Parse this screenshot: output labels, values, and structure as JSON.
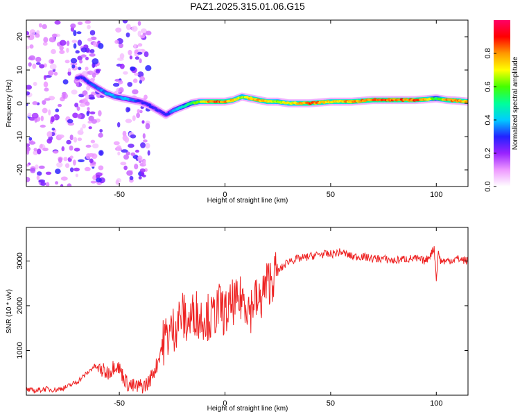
{
  "title": "PAZ1.2025.315.01.06.G15",
  "colors": {
    "snr_line": "#ee2222",
    "frame": "#000000",
    "colormap": [
      "#ffffff",
      "#ee99ff",
      "#9922ff",
      "#2222ff",
      "#00ccff",
      "#00ff99",
      "#44ff00",
      "#ffff00",
      "#ff9900",
      "#ff0000",
      "#ff0066"
    ]
  },
  "chart_data": [
    {
      "type": "heatmap",
      "name": "spectrogram",
      "xlabel": "Height of straight line (km)",
      "ylabel": "Frequency (Hz)",
      "xlim": [
        -94,
        115
      ],
      "ylim": [
        -25,
        25
      ],
      "x_ticks": [
        -50,
        0,
        50,
        100
      ],
      "x_tick_labels": [
        "-50",
        "0",
        "50",
        "100"
      ],
      "y_ticks": [
        -20,
        -10,
        0,
        10,
        20
      ],
      "y_tick_labels": [
        "-20",
        "-10",
        "0",
        "10",
        "20"
      ],
      "ridge": {
        "x": [
          -72,
          -68,
          -64,
          -60,
          -56,
          -52,
          -48,
          -44,
          -40,
          -36,
          -32,
          -28,
          -24,
          -20,
          -16,
          -12,
          -8,
          -4,
          0,
          4,
          8,
          12,
          16,
          20,
          25,
          30,
          40,
          50,
          60,
          70,
          80,
          90,
          95,
          100,
          105,
          110,
          115
        ],
        "y": [
          7,
          8,
          6,
          4.5,
          3,
          2,
          1.5,
          1,
          0.5,
          -0.5,
          -2,
          -3.5,
          -2,
          -1,
          0,
          0.5,
          0.5,
          0.5,
          0.5,
          1,
          2,
          1.5,
          1,
          0.5,
          0.5,
          0,
          0,
          0.5,
          0.5,
          1,
          1,
          1,
          1.2,
          1.5,
          1,
          0.8,
          0.5
        ],
        "amplitude": [
          0.3,
          0.3,
          0.35,
          0.35,
          0.4,
          0.4,
          0.4,
          0.4,
          0.3,
          0.3,
          0.3,
          0.3,
          0.4,
          0.5,
          0.6,
          0.7,
          0.85,
          0.9,
          0.85,
          0.8,
          0.7,
          0.8,
          0.85,
          0.8,
          0.7,
          0.75,
          0.9,
          0.8,
          0.85,
          0.9,
          0.9,
          0.9,
          0.85,
          0.55,
          0.85,
          0.9,
          0.8
        ]
      },
      "noise_regions": [
        {
          "x_range": [
            -94,
            -58
          ],
          "y_range": [
            -25,
            25
          ]
        },
        {
          "x_range": [
            -52,
            -36
          ],
          "y_range": [
            -25,
            25
          ]
        }
      ],
      "colorbar": {
        "label": "Normalized spectral amplitude",
        "range": [
          0,
          1
        ],
        "ticks": [
          0.0,
          0.2,
          0.4,
          0.6,
          0.8
        ],
        "tick_labels": [
          "0.0",
          "0.2",
          "0.4",
          "0.6",
          "0.8"
        ]
      }
    },
    {
      "type": "line",
      "name": "snr",
      "xlabel": "Height of straight line (km)",
      "ylabel": "SNR (10 * v/v)",
      "xlim": [
        -94,
        115
      ],
      "ylim": [
        0,
        3750
      ],
      "x_ticks": [
        -50,
        0,
        50,
        100
      ],
      "x_tick_labels": [
        "-50",
        "0",
        "50",
        "100"
      ],
      "y_ticks": [
        1000,
        2000,
        3000
      ],
      "y_tick_labels": [
        "1000",
        "2000",
        "3000"
      ],
      "series": [
        {
          "name": "SNR",
          "x": [
            -94,
            -90,
            -85,
            -80,
            -75,
            -70,
            -65,
            -62,
            -58,
            -56,
            -54,
            -52,
            -50,
            -48,
            -46,
            -44,
            -42,
            -40,
            -38,
            -36,
            -34,
            -32,
            -30,
            -28,
            -26,
            -24,
            -22,
            -20,
            -18,
            -16,
            -14,
            -12,
            -10,
            -8,
            -6,
            -4,
            -2,
            0,
            2,
            4,
            6,
            8,
            10,
            12,
            14,
            16,
            18,
            20,
            22,
            24,
            26,
            28,
            30,
            35,
            40,
            45,
            50,
            55,
            60,
            65,
            70,
            75,
            80,
            85,
            90,
            95,
            98,
            99,
            100,
            101,
            102,
            105,
            110,
            115
          ],
          "y": [
            120,
            100,
            140,
            120,
            180,
            300,
            500,
            650,
            550,
            500,
            550,
            700,
            600,
            400,
            250,
            200,
            180,
            200,
            220,
            300,
            500,
            700,
            1100,
            1300,
            1400,
            1500,
            1700,
            1800,
            1600,
            1700,
            1900,
            1700,
            1800,
            1750,
            1700,
            1900,
            2000,
            1800,
            1900,
            2100,
            2000,
            2200,
            2100,
            1900,
            2200,
            2000,
            2300,
            2500,
            2600,
            2700,
            2800,
            2900,
            3000,
            3050,
            3100,
            3150,
            3150,
            3200,
            3100,
            3100,
            3050,
            3050,
            3000,
            3050,
            3050,
            3000,
            3200,
            3300,
            2600,
            3200,
            3000,
            3000,
            3050,
            3000
          ]
        }
      ]
    }
  ]
}
